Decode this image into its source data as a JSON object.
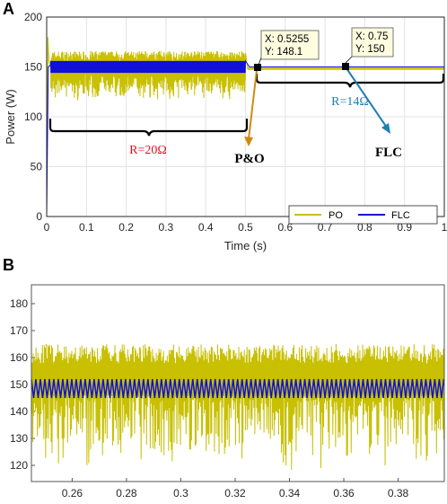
{
  "colors": {
    "po": "#c8c000",
    "flc": "#1010d8",
    "r20": "#e01020",
    "r14": "#1e7fb0",
    "po_arrow": "#d08a10",
    "flc_arrow": "#1e7fb0"
  },
  "panel_a": {
    "letter": "A",
    "annotations": {
      "r20": "R=20Ω",
      "r14": "R=14Ω",
      "po_label": "P&O",
      "flc_label": "FLC",
      "tip1_x": "X: 0.5255",
      "tip1_y": "Y: 148.1",
      "tip2_x": "X: 0.75",
      "tip2_y": "Y: 150"
    },
    "legend": {
      "po": "PO",
      "flc": "FLC"
    }
  },
  "panel_b": {
    "letter": "B"
  },
  "chart_data": [
    {
      "type": "line",
      "title": "",
      "xlabel": "Time (s)",
      "ylabel": "Power (W)",
      "xlim": [
        0,
        1
      ],
      "ylim": [
        0,
        200
      ],
      "xticks": [
        "0",
        "0.1",
        "0.2",
        "0.3",
        "0.4",
        "0.5",
        "0.6",
        "0.7",
        "0.8",
        "0.9",
        "1"
      ],
      "yticks": [
        "0",
        "50",
        "100",
        "150",
        "200"
      ],
      "grid": true,
      "legend_position": "bottom-right",
      "series": [
        {
          "name": "PO",
          "x": [
            0,
            0.003,
            0.01,
            0.5,
            0.51,
            1.0
          ],
          "y": [
            0,
            180,
            150,
            150,
            148,
            148
          ],
          "oscillation_band_0_01_to_0_5": [
            110,
            170
          ],
          "oscillation_band_0_5_to_1": [
            147,
            149
          ]
        },
        {
          "name": "FLC",
          "x": [
            0,
            0.004,
            0.01,
            0.5,
            0.51,
            1.0
          ],
          "y": [
            0,
            150,
            150,
            150,
            150,
            150
          ],
          "oscillation_band_0_01_to_0_5": [
            144,
            156
          ],
          "oscillation_band_0_5_to_1": [
            149.5,
            150.5
          ]
        }
      ],
      "datatips": [
        {
          "x": 0.5255,
          "y": 148.1
        },
        {
          "x": 0.75,
          "y": 150
        }
      ]
    },
    {
      "type": "line",
      "title": "",
      "xlabel": "",
      "ylabel": "",
      "xlim": [
        0.245,
        0.397
      ],
      "ylim": [
        114,
        187
      ],
      "xticks": [
        "0.26",
        "0.28",
        "0.3",
        "0.32",
        "0.34",
        "0.36",
        "0.38"
      ],
      "yticks": [
        "120",
        "130",
        "140",
        "150",
        "160",
        "170",
        "180"
      ],
      "grid": false,
      "series": [
        {
          "name": "PO",
          "x_range": [
            0.245,
            0.397
          ],
          "y_min_approx": 118,
          "y_max_approx": 165,
          "mean": 148
        },
        {
          "name": "FLC",
          "x_range": [
            0.245,
            0.397
          ],
          "y_min": 145,
          "y_max": 152,
          "period": 0.00165
        }
      ]
    }
  ]
}
